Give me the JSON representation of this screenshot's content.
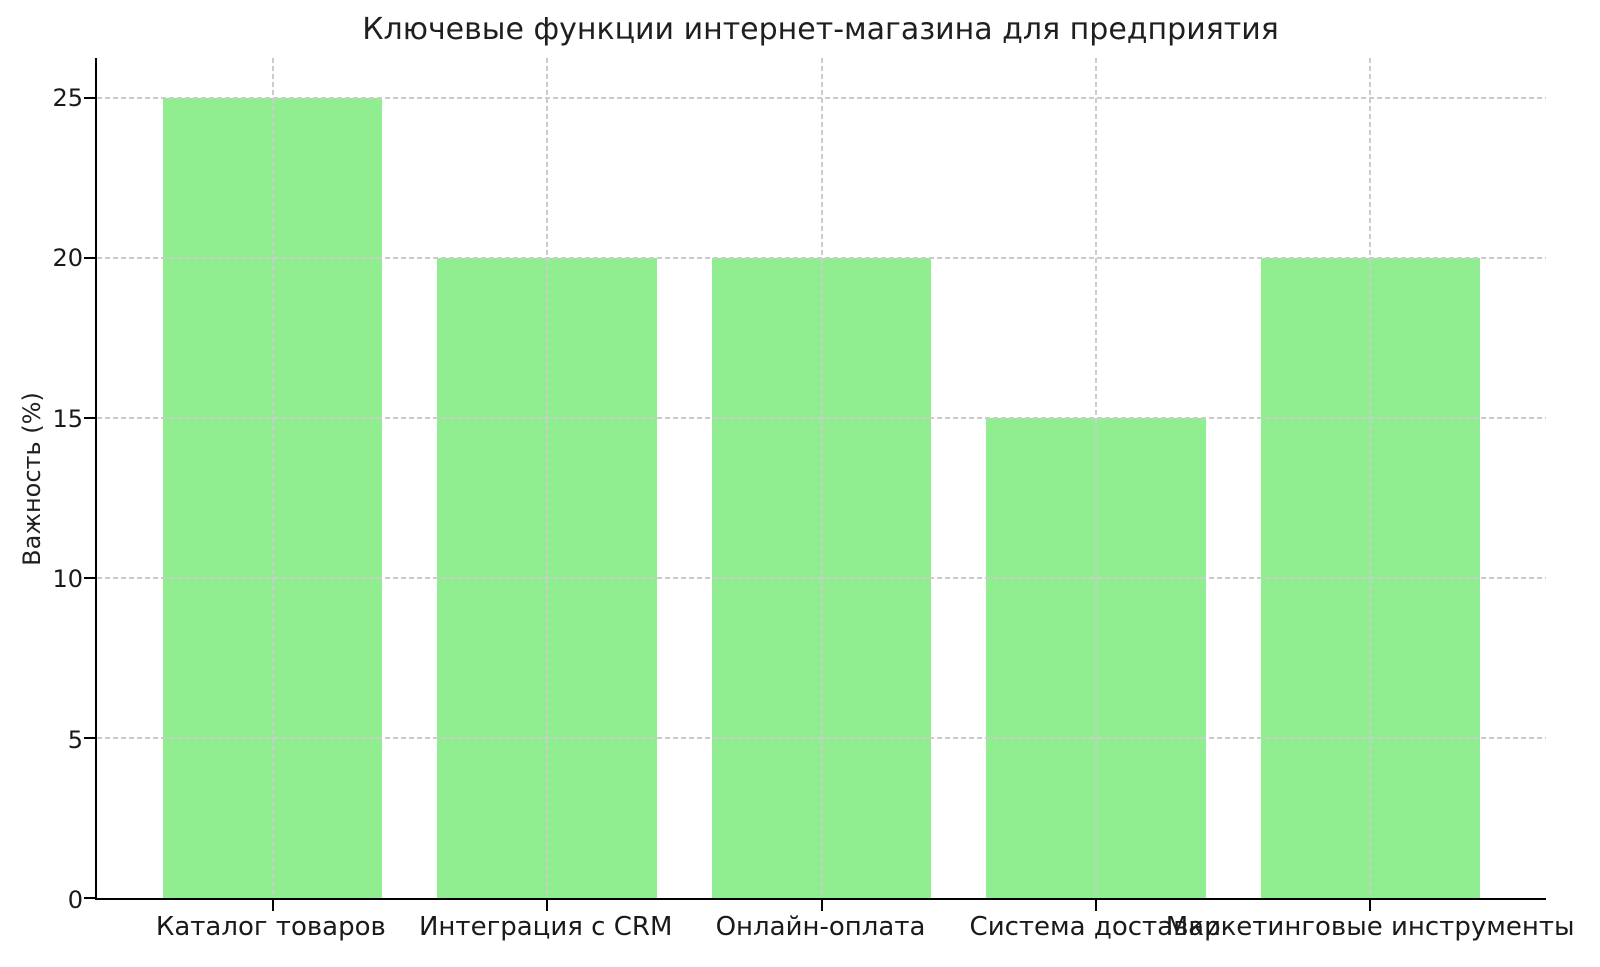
{
  "chart_data": {
    "type": "bar",
    "title": "Ключевые функции интернет-магазина для предприятия",
    "ylabel": "Важность (%)",
    "xlabel": "",
    "categories": [
      "Каталог товаров",
      "Интеграция с CRM",
      "Онлайн-оплата",
      "Система доставки",
      "Маркетинговые инструменты"
    ],
    "values": [
      25,
      20,
      20,
      15,
      20
    ],
    "y_ticks": [
      0,
      5,
      10,
      15,
      20,
      25
    ],
    "ylim": [
      0,
      26.25
    ],
    "bar_color": "#90EE90",
    "grid": {
      "visible": true,
      "axis": "both",
      "style": "dashed",
      "color": "#cccccc",
      "above_bars": true
    },
    "legend_position": "none",
    "background_color": "#ffffff",
    "spine_color": "#000000",
    "text_color": "#1a1a1a"
  }
}
